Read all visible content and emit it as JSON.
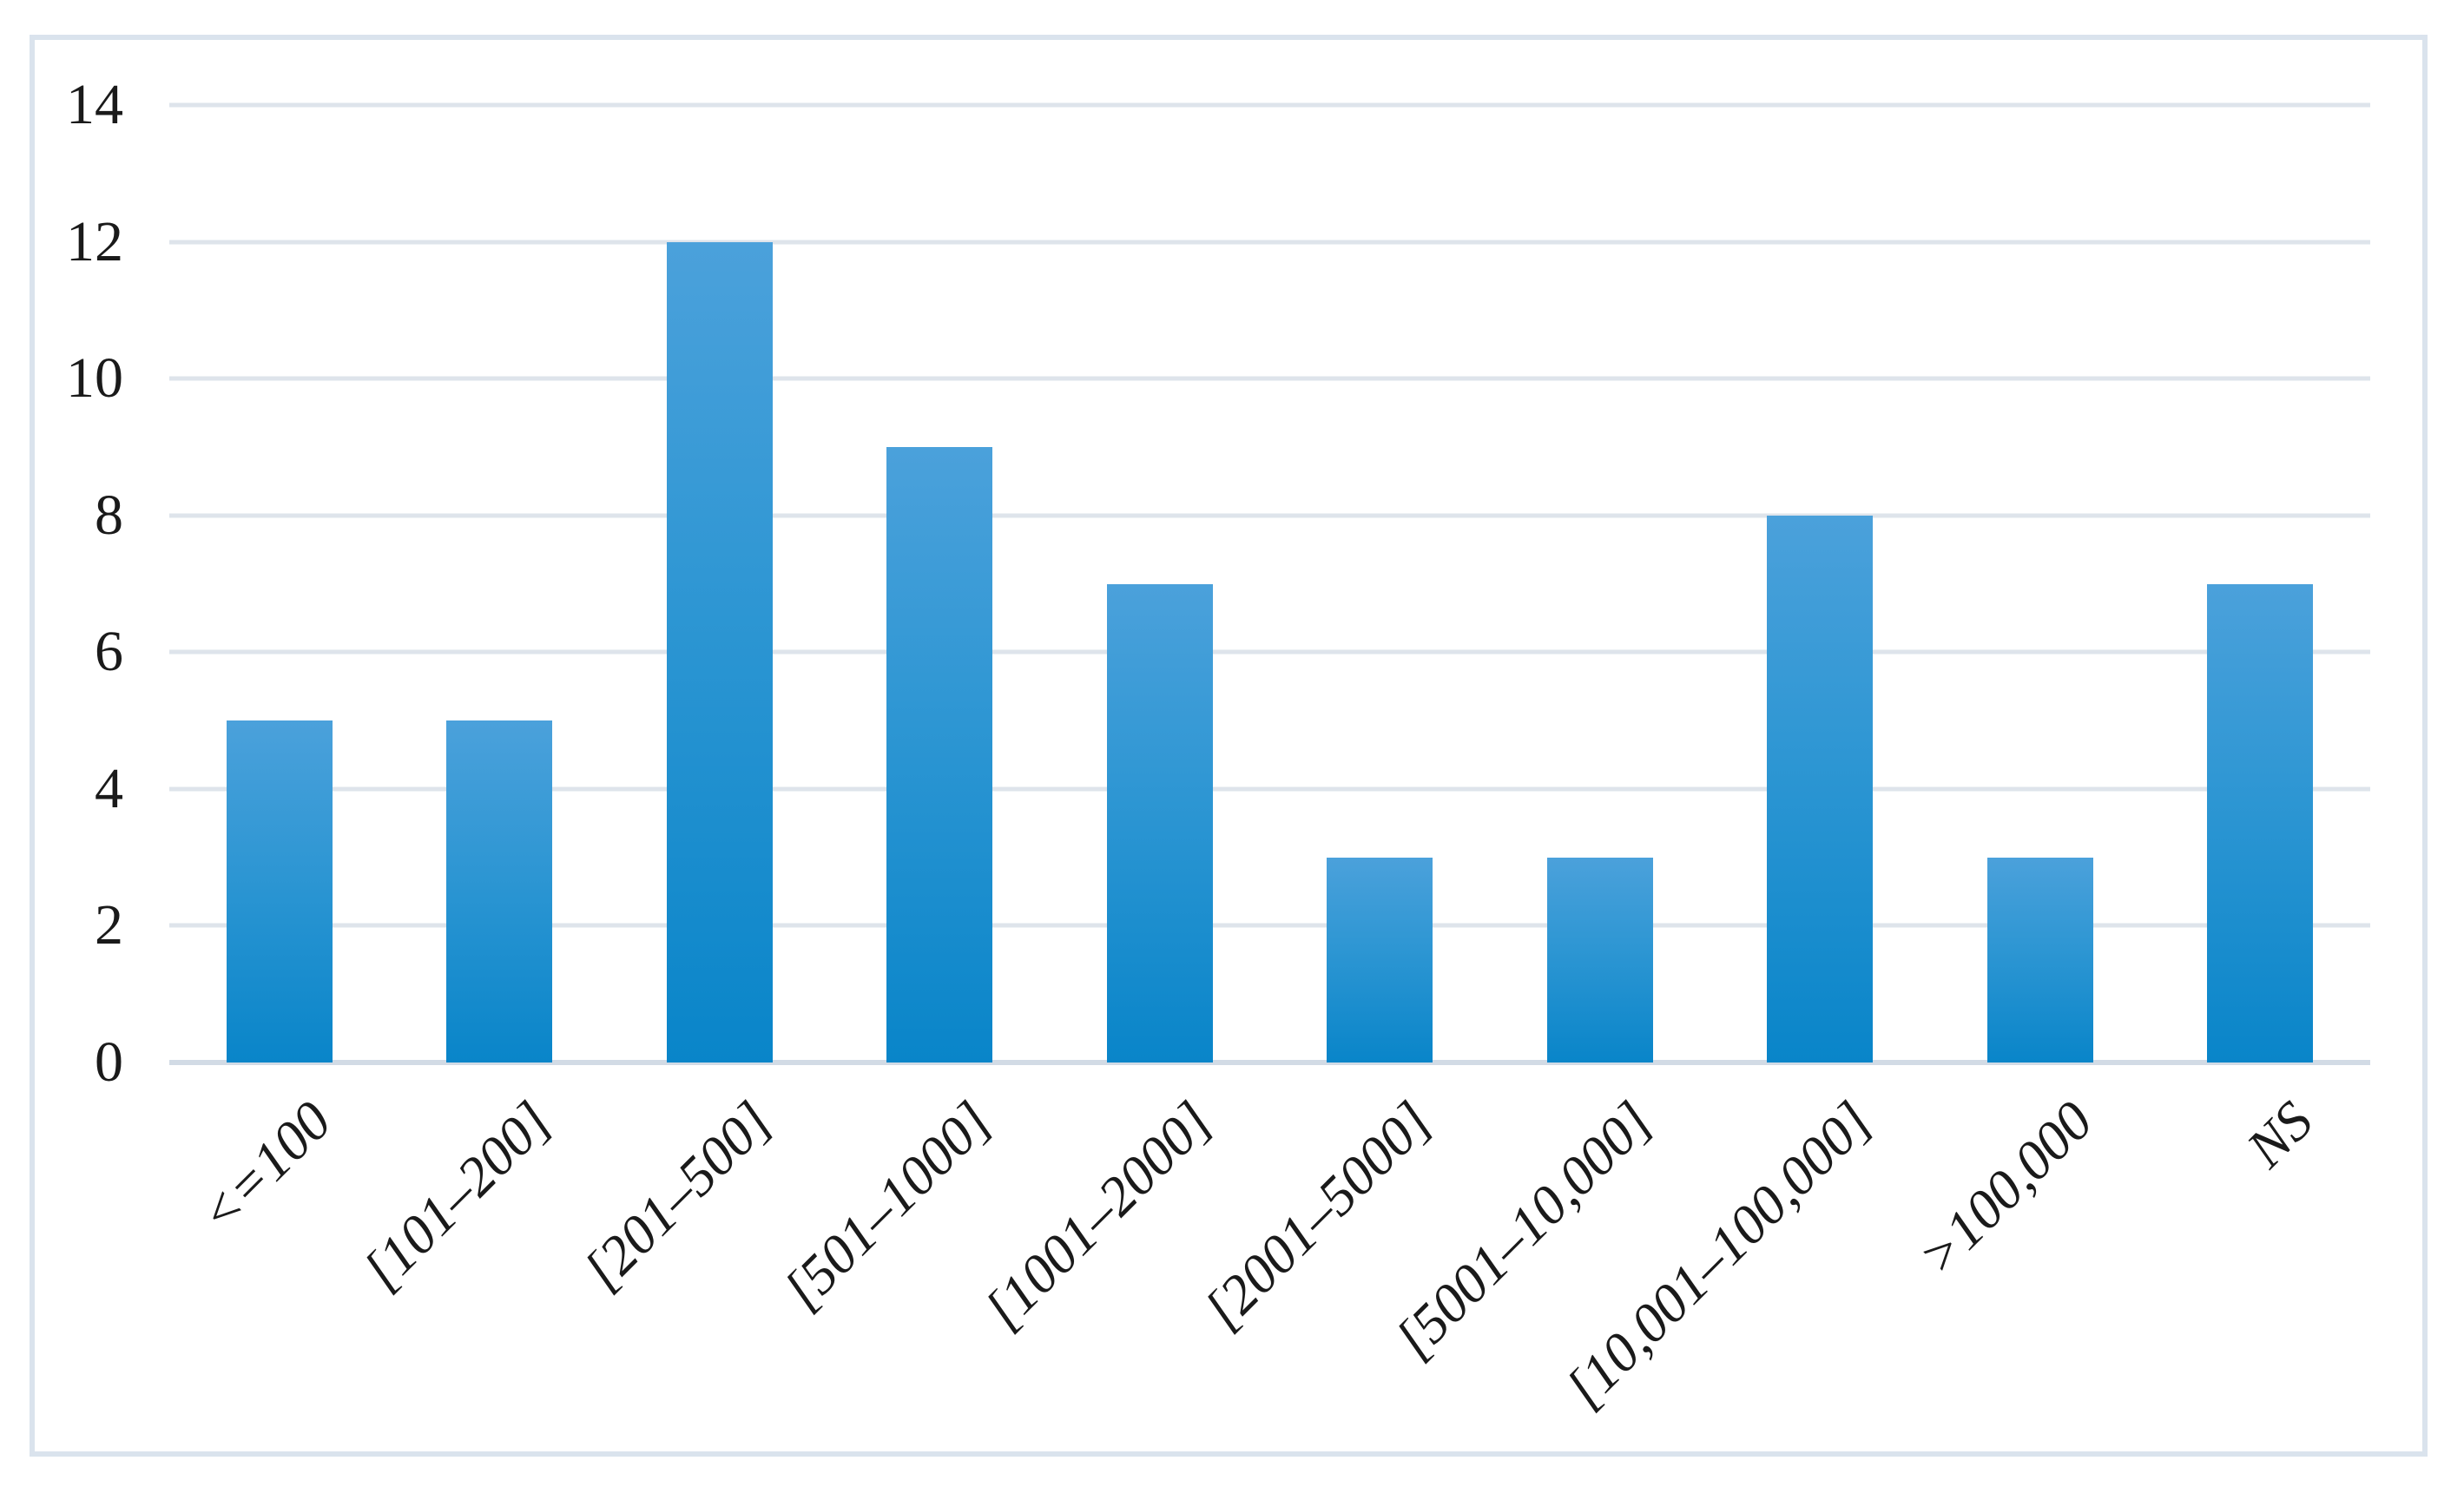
{
  "chart_data": {
    "type": "bar",
    "categories": [
      "<=100",
      "[101–200]",
      "[201–500]",
      "[501–1000]",
      "[1001–2000]",
      "[2001–5000]",
      "[5001–10,000]",
      "[10,001–100,000]",
      ">100,000",
      "NS"
    ],
    "values": [
      5,
      5,
      12,
      9,
      7,
      3,
      3,
      8,
      3,
      7
    ],
    "title": "",
    "xlabel": "",
    "ylabel": "",
    "ylim": [
      0,
      14
    ],
    "yticks": [
      0,
      2,
      4,
      6,
      8,
      10,
      12,
      14
    ],
    "grid": true,
    "legend": false,
    "bar_gap_ratio": 0.52,
    "colors": {
      "bar_gradient_top": "#4ba1db",
      "bar_gradient_mid": "#2d96d3",
      "bar_gradient_bottom": "#0985c9",
      "gridline": "#dee4eb",
      "axis_baseline": "#d2dbe5",
      "frame_border": "#dae3ed",
      "label_text": "#1a1a1a",
      "background": "#ffffff"
    }
  }
}
